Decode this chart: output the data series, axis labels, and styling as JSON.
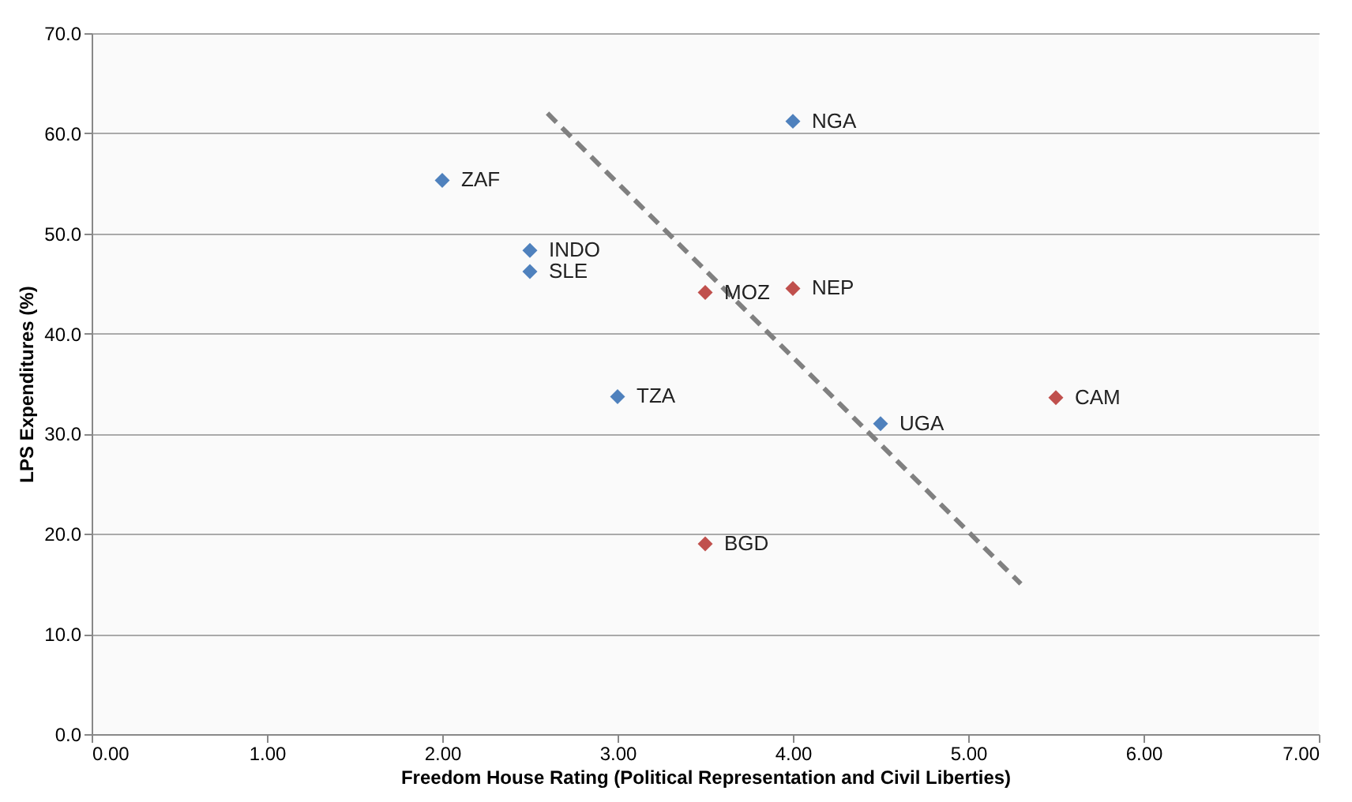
{
  "chart_data": {
    "type": "scatter",
    "xlabel": "Freedom House Rating (Political Representation and Civil Liberties)",
    "ylabel": "LPS Expenditures (%)",
    "xlim": [
      0,
      7
    ],
    "ylim": [
      0,
      70
    ],
    "xticks": [
      {
        "value": 0,
        "label": "0.00"
      },
      {
        "value": 1,
        "label": "1.00"
      },
      {
        "value": 2,
        "label": "2.00"
      },
      {
        "value": 3,
        "label": "3.00"
      },
      {
        "value": 4,
        "label": "4.00"
      },
      {
        "value": 5,
        "label": "5.00"
      },
      {
        "value": 6,
        "label": "6.00"
      },
      {
        "value": 7,
        "label": "7.00"
      }
    ],
    "yticks": [
      {
        "value": 0,
        "label": "0.0"
      },
      {
        "value": 10,
        "label": "10.0"
      },
      {
        "value": 20,
        "label": "20.0"
      },
      {
        "value": 30,
        "label": "30.0"
      },
      {
        "value": 40,
        "label": "40.0"
      },
      {
        "value": 50,
        "label": "50.0"
      },
      {
        "value": 60,
        "label": "60.0"
      },
      {
        "value": 70,
        "label": "70.0"
      }
    ],
    "grid": "y",
    "marker": "diamond",
    "series": [
      {
        "color": "#4f81bd",
        "x": [
          2.0,
          2.5,
          2.5,
          3.0,
          4.0,
          4.5
        ],
        "values": [
          55.3,
          48.3,
          46.2,
          33.7,
          61.2,
          31.0
        ]
      },
      {
        "color": "#c0504d",
        "x": [
          3.5,
          4.0,
          5.5,
          3.5
        ],
        "values": [
          44.1,
          44.5,
          33.6,
          19.0
        ]
      },
      {
        "type": "line",
        "color": "#808080",
        "line_style": "dashed",
        "marker": "none",
        "x": [
          2.6,
          5.3
        ],
        "values": [
          62,
          15
        ]
      }
    ],
    "annotations": [
      {
        "text": "ZAF",
        "x": 2.0,
        "y": 55.3
      },
      {
        "text": "INDO",
        "x": 2.5,
        "y": 48.3
      },
      {
        "text": "SLE",
        "x": 2.5,
        "y": 46.2
      },
      {
        "text": "TZA",
        "x": 3.0,
        "y": 33.7
      },
      {
        "text": "NGA",
        "x": 4.0,
        "y": 61.2
      },
      {
        "text": "UGA",
        "x": 4.5,
        "y": 31.0
      },
      {
        "text": "MOZ",
        "x": 3.5,
        "y": 44.1
      },
      {
        "text": "NEP",
        "x": 4.0,
        "y": 44.5
      },
      {
        "text": "CAM",
        "x": 5.5,
        "y": 33.6
      },
      {
        "text": "BGD",
        "x": 3.5,
        "y": 19.0
      }
    ]
  }
}
